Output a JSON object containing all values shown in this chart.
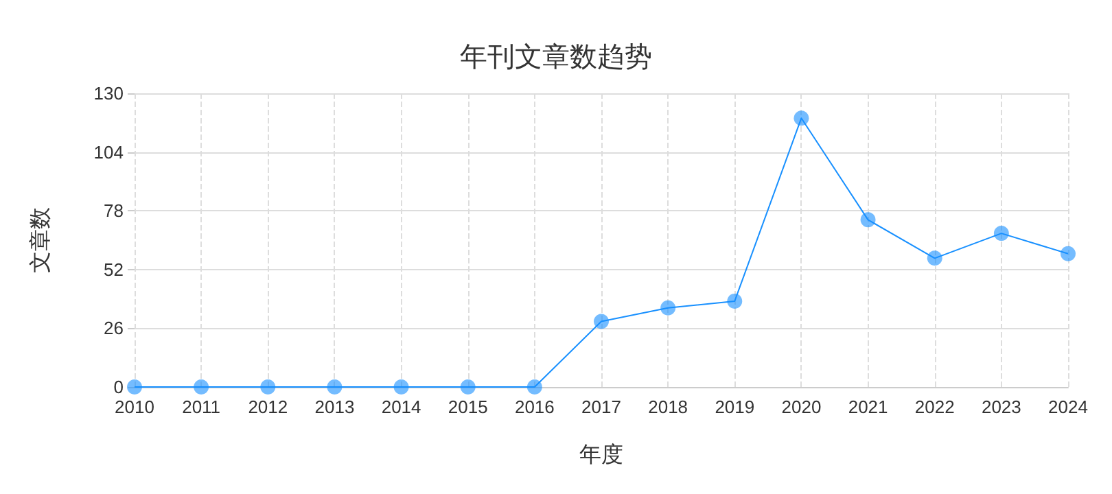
{
  "chart_data": {
    "type": "line",
    "title": "年刊文章数趋势",
    "xlabel": "年度",
    "ylabel": "文章数",
    "categories": [
      "2010",
      "2011",
      "2012",
      "2013",
      "2014",
      "2015",
      "2016",
      "2017",
      "2018",
      "2019",
      "2020",
      "2021",
      "2022",
      "2023",
      "2024"
    ],
    "series": [
      {
        "color": "#1890ff",
        "values": [
          0,
          0,
          0,
          0,
          0,
          0,
          0,
          29,
          35,
          38,
          119,
          74,
          57,
          68,
          59
        ]
      }
    ],
    "ylim": [
      0,
      130
    ],
    "yticks": [
      0,
      26,
      52,
      78,
      104,
      130
    ],
    "grid": true,
    "marker": "circle",
    "line_style": "solid"
  }
}
